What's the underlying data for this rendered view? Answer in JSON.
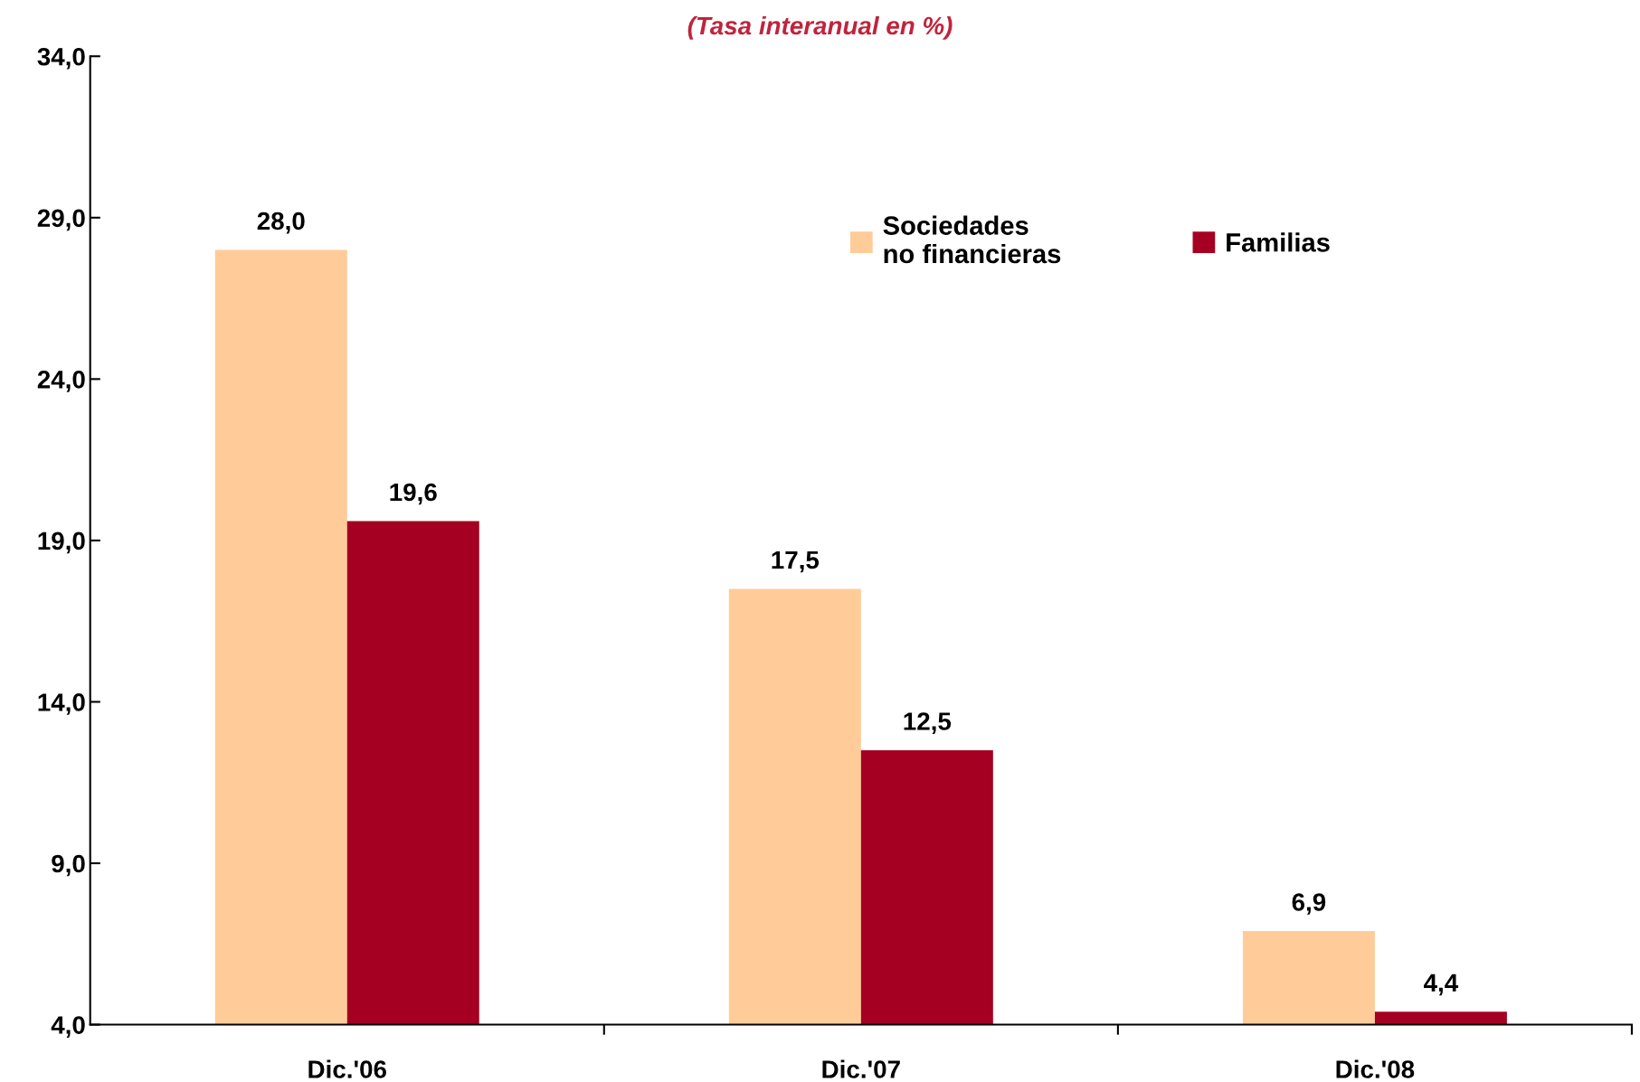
{
  "chart_data": {
    "type": "bar",
    "subtitle": "(Tasa interanual en %)",
    "categories": [
      "Dic.'06",
      "Dic.'07",
      "Dic.'08"
    ],
    "series": [
      {
        "name": "Sociedades\nno financieras",
        "color": "#ffcc99",
        "values": [
          28.0,
          17.5,
          6.9
        ],
        "value_labels": [
          "28,0",
          "17,5",
          "6,9"
        ]
      },
      {
        "name": "Familias",
        "color": "#a50021",
        "values": [
          19.6,
          12.5,
          4.4
        ],
        "value_labels": [
          "19,6",
          "12,5",
          "4,4"
        ]
      }
    ],
    "ylim": [
      4,
      34
    ],
    "yticks": [
      {
        "value": 4,
        "label": "4,0"
      },
      {
        "value": 9,
        "label": "9,0"
      },
      {
        "value": 14,
        "label": "14,0"
      },
      {
        "value": 19,
        "label": "19,0"
      },
      {
        "value": 24,
        "label": "24,0"
      },
      {
        "value": 29,
        "label": "29,0"
      },
      {
        "value": 34,
        "label": "34,0"
      }
    ],
    "grid": false,
    "legend": "top right"
  }
}
